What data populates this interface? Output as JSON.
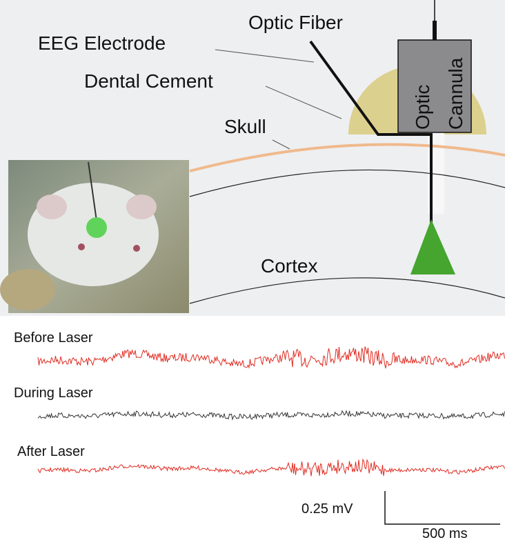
{
  "labels": {
    "optic_fiber": "Optic Fiber",
    "eeg_electrode": "EEG Electrode",
    "dental_cement": "Dental Cement",
    "skull": "Skull",
    "cortex": "Cortex",
    "optic_cannula": [
      "Optic",
      "Cannula"
    ]
  },
  "traces": [
    {
      "label": "Before Laser"
    },
    {
      "label": "During Laser"
    },
    {
      "label": "After Laser"
    }
  ],
  "scale_bar": {
    "vertical": "0.25 mV",
    "horizontal": "500 ms"
  }
}
